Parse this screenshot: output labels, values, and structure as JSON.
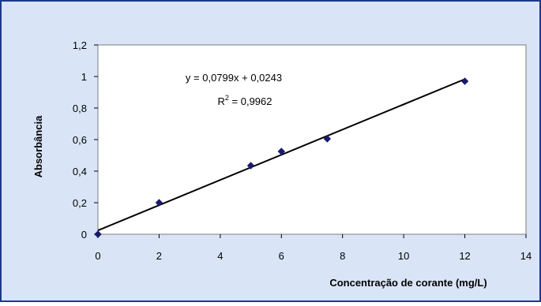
{
  "chart_data": {
    "type": "scatter",
    "xlabel": "Concentração de corante (mg/L)",
    "ylabel": "Absorbância",
    "xlim": [
      0,
      14
    ],
    "ylim": [
      0,
      1.2
    ],
    "x_ticks": [
      "0",
      "2",
      "4",
      "6",
      "8",
      "10",
      "12",
      "14"
    ],
    "y_ticks": [
      "0",
      "0,2",
      "0,4",
      "0,6",
      "0,8",
      "1",
      "1,2"
    ],
    "grid": false,
    "legend": "none",
    "series": [
      {
        "x": [
          0,
          2,
          5,
          6,
          7.5,
          12
        ],
        "y": [
          0,
          0.2,
          0.435,
          0.525,
          0.605,
          0.97
        ]
      }
    ],
    "trendline": {
      "type": "linear",
      "slope": 0.0799,
      "intercept": 0.0243,
      "equation_text": "y = 0,0799x + 0,0243",
      "r2_label": "R",
      "r2_value_text": " = 0,9962"
    },
    "colors": {
      "background": "#d9e4f7",
      "border": "#1b3a8c",
      "marker": "#1a1a6e",
      "trendline": "#000000",
      "plot_area": "#ffffff"
    }
  }
}
